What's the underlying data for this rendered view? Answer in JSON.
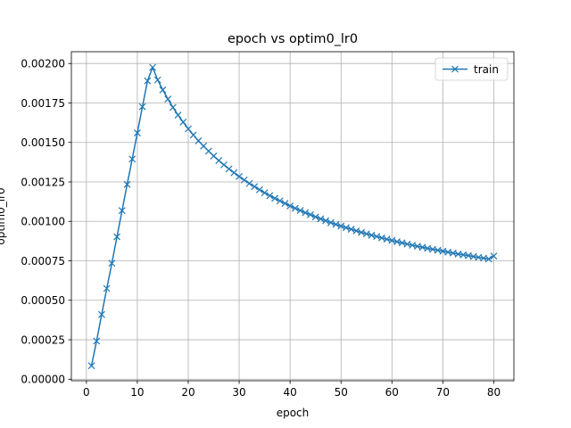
{
  "chart_data": {
    "type": "line",
    "title": "epoch vs optim0_lr0",
    "xlabel": "epoch",
    "ylabel": "optim0_lr0",
    "xlim": [
      -2.95,
      83.95
    ],
    "ylim": [
      -9.6e-06,
      0.0020746
    ],
    "xticks": [
      0,
      10,
      20,
      30,
      40,
      50,
      60,
      70,
      80
    ],
    "xtick_labels": [
      "0",
      "10",
      "20",
      "30",
      "40",
      "50",
      "60",
      "70",
      "80"
    ],
    "yticks": [
      0.0,
      0.00025,
      0.0005,
      0.00075,
      0.001,
      0.00125,
      0.0015,
      0.00175,
      0.002
    ],
    "ytick_labels": [
      "0.00000",
      "0.00025",
      "0.00050",
      "0.00075",
      "0.00100",
      "0.00125",
      "0.00150",
      "0.00175",
      "0.00200"
    ],
    "grid": true,
    "legend_position": "top-right",
    "series": [
      {
        "name": "train",
        "color": "#1f77b4",
        "marker": "x",
        "x": [
          1,
          2,
          3,
          4,
          5,
          6,
          7,
          8,
          9,
          10,
          11,
          12,
          13,
          14,
          15,
          16,
          17,
          18,
          19,
          20,
          21,
          22,
          23,
          24,
          25,
          26,
          27,
          28,
          29,
          30,
          31,
          32,
          33,
          34,
          35,
          36,
          37,
          38,
          39,
          40,
          41,
          42,
          43,
          44,
          45,
          46,
          47,
          48,
          49,
          50,
          51,
          52,
          53,
          54,
          55,
          56,
          57,
          58,
          59,
          60,
          61,
          62,
          63,
          64,
          65,
          66,
          67,
          68,
          69,
          70,
          71,
          72,
          73,
          74,
          75,
          76,
          77,
          78,
          79,
          80
        ],
        "y": [
          8.55e-05,
          0.000242,
          0.00041,
          0.000575,
          0.000735,
          0.000902,
          0.001068,
          0.001234,
          0.001395,
          0.00156,
          0.001726,
          0.00189,
          0.001975,
          0.001896,
          0.001833,
          0.001775,
          0.001722,
          0.001673,
          0.001629,
          0.001586,
          0.001547,
          0.00151,
          0.001477,
          0.001445,
          0.001414,
          0.001385,
          0.001358,
          0.001332,
          0.001308,
          0.001284,
          0.001262,
          0.00124,
          0.00122,
          0.0012,
          0.001181,
          0.001163,
          0.001146,
          0.00113,
          0.001114,
          0.001098,
          0.001083,
          0.001069,
          0.001055,
          0.001042,
          0.001028,
          0.001016,
          0.001004,
          0.000992,
          0.000981,
          0.00097,
          0.00096,
          0.00095,
          0.00094,
          0.00093,
          0.000921,
          0.000912,
          0.000904,
          0.000895,
          0.000887,
          0.000879,
          0.000871,
          0.000864,
          0.000856,
          0.000849,
          0.000842,
          0.000836,
          0.000829,
          0.000823,
          0.000817,
          0.000811,
          0.000805,
          0.000799,
          0.000793,
          0.000788,
          0.000783,
          0.000777,
          0.000772,
          0.000767,
          0.000762,
          0.00078
        ]
      }
    ]
  }
}
